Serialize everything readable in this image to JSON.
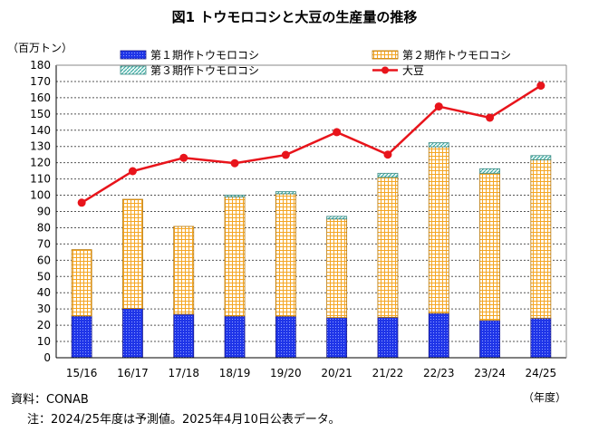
{
  "chart_data": {
    "type": "bar",
    "title": "図1 トウモロコシと大豆の生産量の推移",
    "ylabel": "（百万トン）",
    "xlabel": "（年度）",
    "ylim": [
      0,
      180
    ],
    "yticks": [
      0,
      10,
      20,
      30,
      40,
      50,
      60,
      70,
      80,
      90,
      100,
      110,
      120,
      130,
      140,
      150,
      160,
      170,
      180
    ],
    "categories": [
      "15/16",
      "16/17",
      "17/18",
      "18/19",
      "19/20",
      "20/21",
      "21/22",
      "22/23",
      "23/24",
      "24/25"
    ],
    "stacked": true,
    "grid": true,
    "legend_position": "top",
    "series": [
      {
        "name": "第１期作トウモロコシ",
        "type": "bar",
        "color": "#1f35e8",
        "pattern": "dots",
        "values": [
          25.7,
          30.3,
          26.8,
          25.7,
          25.6,
          24.7,
          24.9,
          27.4,
          23.0,
          24.4
        ]
      },
      {
        "name": "第２期作トウモロコシ",
        "type": "bar",
        "color": "#f5a623",
        "pattern": "grid",
        "values": [
          40.8,
          67.2,
          54.0,
          73.3,
          75.3,
          60.7,
          86.1,
          102.4,
          90.5,
          97.4
        ]
      },
      {
        "name": "第３期作トウモロコシ",
        "type": "bar",
        "color": "#5fb9b0",
        "pattern": "hatch",
        "values": [
          0.0,
          0.0,
          0.0,
          1.0,
          1.3,
          1.6,
          2.5,
          2.5,
          2.8,
          2.6
        ]
      },
      {
        "name": "大豆",
        "type": "line",
        "color": "#e8141b",
        "values": [
          95.4,
          114.8,
          123.0,
          119.7,
          124.8,
          138.8,
          125.0,
          154.6,
          147.7,
          167.4
        ]
      }
    ]
  },
  "footer": {
    "source": "資料：CONAB",
    "note": "注：2024/25年度は予測値。2025年4月10日公表データ。"
  }
}
